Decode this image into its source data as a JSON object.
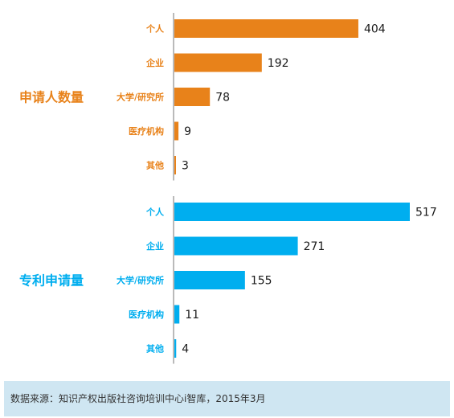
{
  "chart_data": {
    "type": "bar",
    "orientation": "horizontal",
    "categories": [
      "个人",
      "企业",
      "大学/研究所",
      "医疗机构",
      "其他"
    ],
    "groups": [
      {
        "label": "申请人数量",
        "color": "#e8821a",
        "values": [
          404,
          192,
          78,
          9,
          3
        ]
      },
      {
        "label": "专利申请量",
        "color": "#00aeef",
        "values": [
          517,
          271,
          155,
          11,
          4
        ]
      }
    ],
    "xlim": [
      0,
      517
    ],
    "grid": false,
    "legend": "none"
  },
  "footer": {
    "source": "数据来源：知识产权出版社咨询培训中心i智库，2015年3月"
  }
}
